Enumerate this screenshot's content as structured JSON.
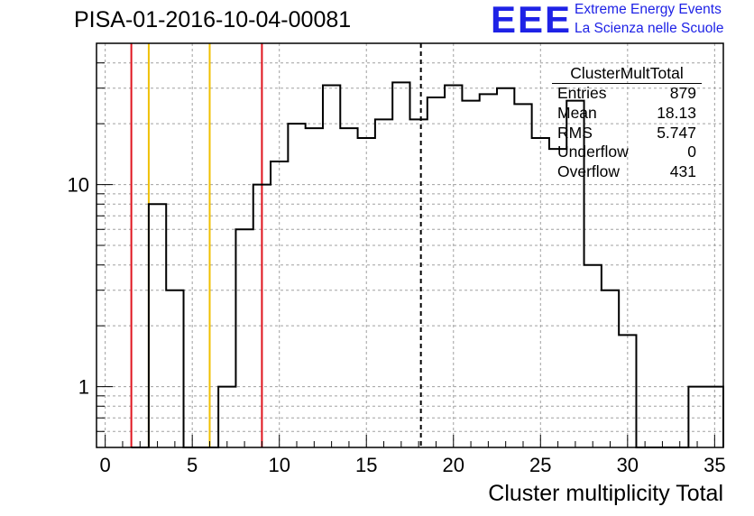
{
  "header": {
    "run_title": "PISA-01-2016-10-04-00081",
    "logo_text": "EEE",
    "logo_line1": "Extreme Energy Events",
    "logo_line2": "La Scienza nelle Scuole"
  },
  "stats_box": {
    "title": "ClusterMultTotal",
    "rows": [
      {
        "label": "Entries",
        "value": "879"
      },
      {
        "label": "Mean",
        "value": "18.13"
      },
      {
        "label": "RMS",
        "value": "5.747"
      },
      {
        "label": "Underflow",
        "value": "0"
      },
      {
        "label": "Overflow",
        "value": "431"
      }
    ]
  },
  "colors": {
    "histogram": "#000000",
    "red_line": "#e0141e",
    "yellow_line": "#f0c000",
    "mean_line": "#000000",
    "grid": "#a0a0a0",
    "logo": "#1e22e6"
  },
  "chart_data": {
    "type": "histogram",
    "title": "PISA-01-2016-10-04-00081",
    "xlabel": "Cluster multiplicity Total",
    "ylabel": "",
    "xlim": [
      -0.5,
      35.5
    ],
    "ylim": [
      0.5,
      50
    ],
    "y_scale": "log",
    "grid": true,
    "x_ticks": [
      0,
      5,
      10,
      15,
      20,
      25,
      30,
      35
    ],
    "y_ticks": [
      1,
      10
    ],
    "bins": [
      {
        "x": 2,
        "y": 0
      },
      {
        "x": 3,
        "y": 8
      },
      {
        "x": 4,
        "y": 3
      },
      {
        "x": 5,
        "y": 0
      },
      {
        "x": 6,
        "y": 0
      },
      {
        "x": 7,
        "y": 1
      },
      {
        "x": 8,
        "y": 6
      },
      {
        "x": 9,
        "y": 10
      },
      {
        "x": 10,
        "y": 13
      },
      {
        "x": 11,
        "y": 20
      },
      {
        "x": 12,
        "y": 19
      },
      {
        "x": 13,
        "y": 31
      },
      {
        "x": 14,
        "y": 19
      },
      {
        "x": 15,
        "y": 17
      },
      {
        "x": 16,
        "y": 21
      },
      {
        "x": 17,
        "y": 32
      },
      {
        "x": 18,
        "y": 21
      },
      {
        "x": 19,
        "y": 27
      },
      {
        "x": 20,
        "y": 31
      },
      {
        "x": 21,
        "y": 26
      },
      {
        "x": 22,
        "y": 28
      },
      {
        "x": 23,
        "y": 30
      },
      {
        "x": 24,
        "y": 25
      },
      {
        "x": 25,
        "y": 17
      },
      {
        "x": 26,
        "y": 15
      },
      {
        "x": 27,
        "y": 26
      },
      {
        "x": 28,
        "y": 4
      },
      {
        "x": 29,
        "y": 3
      },
      {
        "x": 30,
        "y": 1.8
      },
      {
        "x": 31,
        "y": 0
      },
      {
        "x": 32,
        "y": 0
      },
      {
        "x": 33,
        "y": 0
      },
      {
        "x": 34,
        "y": 1
      },
      {
        "x": 35,
        "y": 1
      }
    ],
    "vertical_lines": [
      {
        "x": 1.5,
        "color": "red",
        "style": "solid"
      },
      {
        "x": 2.5,
        "color": "yellow",
        "style": "solid"
      },
      {
        "x": 6.0,
        "color": "yellow",
        "style": "solid"
      },
      {
        "x": 9.0,
        "color": "red",
        "style": "solid"
      },
      {
        "x": 18.13,
        "color": "black",
        "style": "dashed"
      }
    ]
  }
}
